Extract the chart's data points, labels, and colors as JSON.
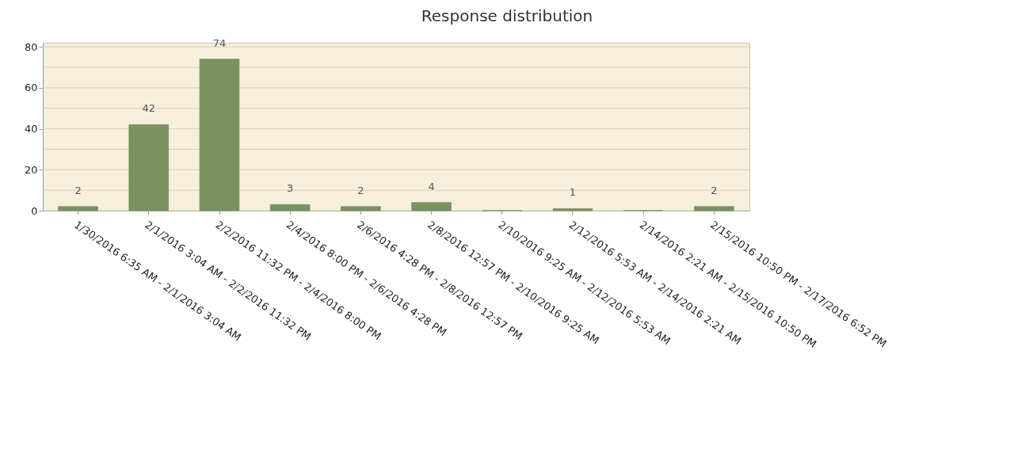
{
  "chart_data": {
    "type": "bar",
    "title": "Response distribution",
    "categories": [
      "1/30/2016 6:35 AM - 2/1/2016 3:04 AM",
      "2/1/2016 3:04 AM - 2/2/2016 11:32 PM",
      "2/2/2016 11:32 PM - 2/4/2016 8:00 PM",
      "2/4/2016 8:00 PM - 2/6/2016 4:28 PM",
      "2/6/2016 4:28 PM - 2/8/2016 12:57 PM",
      "2/8/2016 12:57 PM - 2/10/2016 9:25 AM",
      "2/10/2016 9:25 AM - 2/12/2016 5:53 AM",
      "2/12/2016 5:53 AM - 2/14/2016 2:21 AM",
      "2/14/2016 2:21 AM - 2/15/2016 10:50 PM",
      "2/15/2016 10:50 PM - 2/17/2016 6:52 PM"
    ],
    "values": [
      2,
      42,
      74,
      3,
      2,
      4,
      0,
      1,
      0,
      2
    ],
    "value_labels": [
      "2",
      "42",
      "74",
      "3",
      "2",
      "4",
      null,
      "1",
      null,
      "2"
    ],
    "color": "#7a9160",
    "ylim": [
      0,
      82
    ],
    "yticks": [
      0,
      {
        "value": 10,
        "label": null
      },
      20,
      {
        "value": 30,
        "label": null
      },
      40,
      {
        "value": 50,
        "label": null
      },
      60,
      {
        "value": 70,
        "label": null
      },
      80
    ],
    "grid": "y"
  }
}
